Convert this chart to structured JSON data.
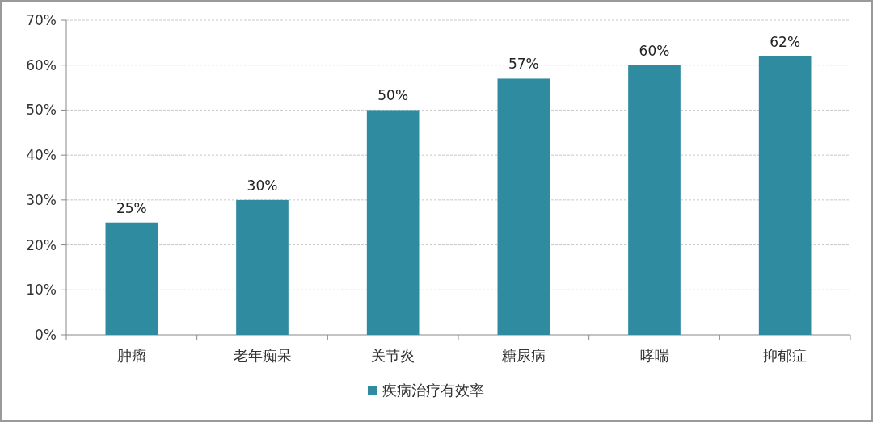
{
  "chart_data": {
    "type": "bar",
    "categories": [
      "肿瘤",
      "老年痴呆",
      "关节炎",
      "糖尿病",
      "哮喘",
      "抑郁症"
    ],
    "series": [
      {
        "name": "疾病治疗有效率",
        "color": "#2e8ba0",
        "values": [
          25,
          30,
          50,
          57,
          60,
          62
        ],
        "value_labels": [
          "25%",
          "30%",
          "50%",
          "57%",
          "60%",
          "62%"
        ]
      }
    ],
    "ylim": [
      0,
      70
    ],
    "yticks": [
      {
        "value": 0,
        "label": "0%"
      },
      {
        "value": 10,
        "label": "10%"
      },
      {
        "value": 20,
        "label": "20%"
      },
      {
        "value": 30,
        "label": "30%"
      },
      {
        "value": 40,
        "label": "40%"
      },
      {
        "value": 50,
        "label": "50%"
      },
      {
        "value": 60,
        "label": "60%"
      },
      {
        "value": 70,
        "label": "70%"
      }
    ],
    "grid": "y",
    "legend": "bottom"
  }
}
